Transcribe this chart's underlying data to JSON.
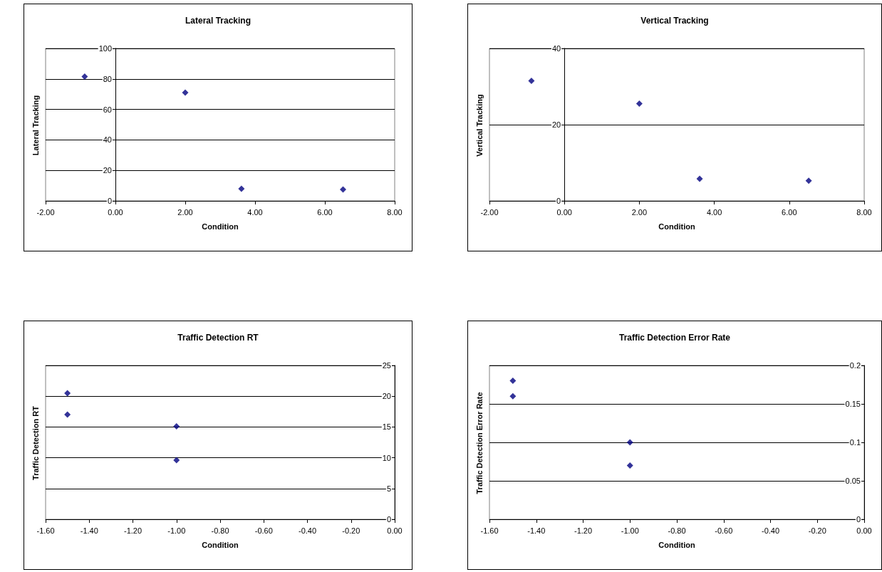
{
  "chart_data": [
    {
      "type": "scatter",
      "title": "Lateral Tracking",
      "xlabel": "Condition",
      "ylabel": "Lateral Tracking",
      "x": [
        -0.88,
        2.0,
        3.61,
        6.52
      ],
      "values": [
        81.5,
        71,
        8,
        7.5
      ],
      "color": "#000080",
      "marker": "diamond",
      "grid": "y",
      "xlim": [
        -2,
        8
      ],
      "xticks": [
        {
          "value": -2,
          "label": "-2.00"
        },
        {
          "value": 0,
          "label": "0.00"
        },
        {
          "value": 2,
          "label": "2.00"
        },
        {
          "value": 4,
          "label": "4.00"
        },
        {
          "value": 6,
          "label": "6.00"
        },
        {
          "value": 8,
          "label": "8.00"
        }
      ],
      "ylim": [
        0,
        100
      ],
      "yticks": [
        0,
        20,
        40,
        60,
        80,
        100
      ]
    },
    {
      "type": "scatter",
      "title": "Vertical Tracking",
      "xlabel": "Condition",
      "ylabel": "Vertical Tracking",
      "x": [
        -0.88,
        2.0,
        3.61,
        6.52
      ],
      "values": [
        31.5,
        25.5,
        5.8,
        5.3
      ],
      "color": "#000080",
      "marker": "diamond",
      "grid": "y",
      "xlim": [
        -2,
        8
      ],
      "xticks": [
        {
          "value": -2,
          "label": "-2.00"
        },
        {
          "value": 0,
          "label": "0.00"
        },
        {
          "value": 2,
          "label": "2.00"
        },
        {
          "value": 4,
          "label": "4.00"
        },
        {
          "value": 6,
          "label": "6.00"
        },
        {
          "value": 8,
          "label": "8.00"
        }
      ],
      "ylim": [
        0,
        40
      ],
      "yticks": [
        0,
        20,
        40
      ]
    },
    {
      "type": "scatter",
      "title": "Traffic Detection RT",
      "xlabel": "Condition",
      "ylabel": "Traffic Detection RT",
      "x": [
        -1.5,
        -1.5,
        -1.0,
        -1.0
      ],
      "values": [
        20.5,
        17,
        15.1,
        9.6
      ],
      "color": "#000080",
      "marker": "diamond",
      "grid": "y",
      "xlim": [
        -1.6,
        0
      ],
      "xticks": [
        {
          "value": -1.6,
          "label": "-1.60"
        },
        {
          "value": -1.4,
          "label": "-1.40"
        },
        {
          "value": -1.2,
          "label": "-1.20"
        },
        {
          "value": -1.0,
          "label": "-1.00"
        },
        {
          "value": -0.8,
          "label": "-0.80"
        },
        {
          "value": -0.6,
          "label": "-0.60"
        },
        {
          "value": -0.4,
          "label": "-0.40"
        },
        {
          "value": -0.2,
          "label": "-0.20"
        },
        {
          "value": 0,
          "label": "0.00"
        }
      ],
      "ylim": [
        0,
        25
      ],
      "yticks": [
        0,
        5,
        10,
        15,
        20,
        25
      ]
    },
    {
      "type": "scatter",
      "title": "Traffic Detection Error Rate",
      "xlabel": "Condition",
      "ylabel": "Traffic Detection Error Rate",
      "x": [
        -1.5,
        -1.5,
        -1.0,
        -1.0
      ],
      "values": [
        0.18,
        0.16,
        0.1,
        0.07
      ],
      "color": "#000080",
      "marker": "diamond",
      "grid": "y",
      "xlim": [
        -1.6,
        0
      ],
      "xticks": [
        {
          "value": -1.6,
          "label": "-1.60"
        },
        {
          "value": -1.4,
          "label": "-1.40"
        },
        {
          "value": -1.2,
          "label": "-1.20"
        },
        {
          "value": -1.0,
          "label": "-1.00"
        },
        {
          "value": -0.8,
          "label": "-0.80"
        },
        {
          "value": -0.6,
          "label": "-0.60"
        },
        {
          "value": -0.4,
          "label": "-0.40"
        },
        {
          "value": -0.2,
          "label": "-0.20"
        },
        {
          "value": 0,
          "label": "0.00"
        }
      ],
      "ylim": [
        0,
        0.2
      ],
      "yticks": [
        0,
        0.05,
        0.1,
        0.15,
        0.2
      ]
    }
  ]
}
